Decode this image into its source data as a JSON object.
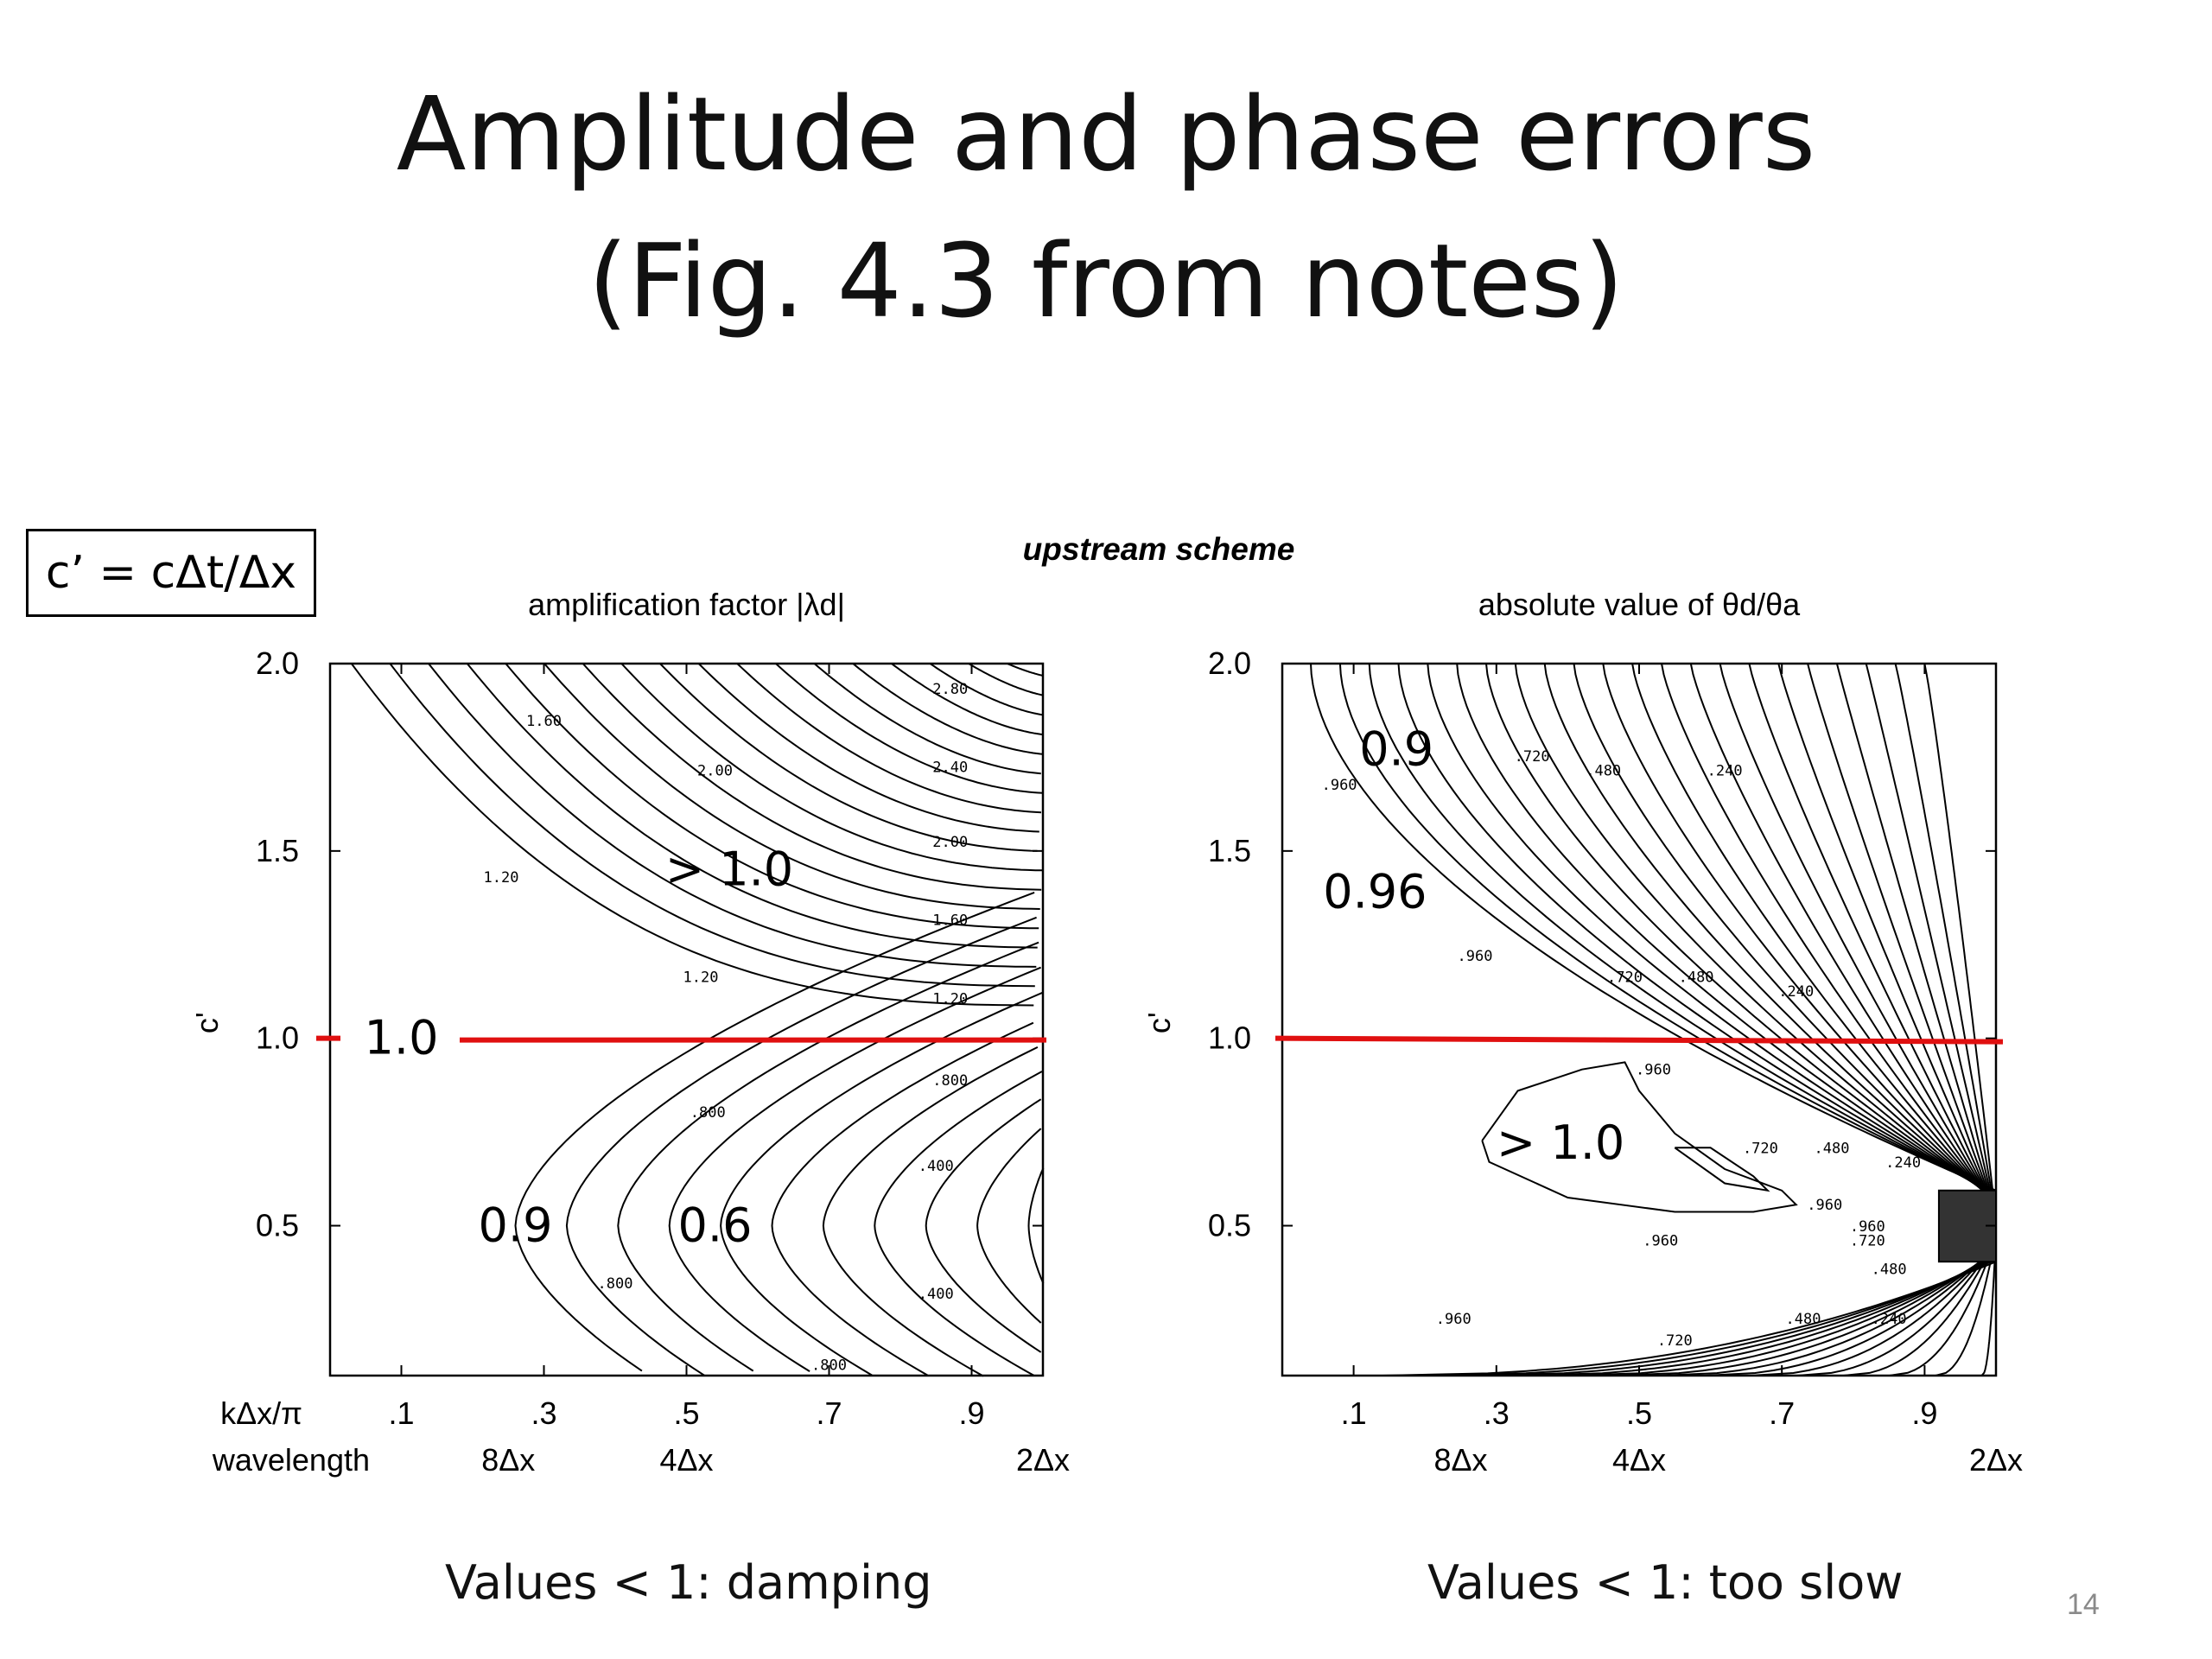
{
  "slide": {
    "title_line1": "Amplitude and phase errors",
    "title_line2": "(Fig. 4.3 from notes)",
    "definition": "c’ = cΔt/Δx",
    "caption_left": "Values < 1: damping",
    "caption_right": "Values < 1: too slow",
    "page_number": "14"
  },
  "chart_data": {
    "suptitle": "upstream scheme",
    "type": "contour",
    "highlight": {
      "y": 1.0,
      "color": "#e01010"
    },
    "panels": [
      {
        "title": "amplification factor |λd|",
        "ylabel": "c'",
        "xlabel": "kΔx/π",
        "secondary_xlabel": "wavelength",
        "xlim": [
          0.0,
          1.0
        ],
        "ylim": [
          0.1,
          2.0
        ],
        "x_ticks": [
          ".1",
          ".3",
          ".5",
          ".7",
          ".9"
        ],
        "y_ticks": [
          "0.5",
          "1.0",
          "1.5",
          "2.0"
        ],
        "wavelength_ticks": [
          {
            "x": 0.25,
            "label": "8Δx"
          },
          {
            "x": 0.5,
            "label": "4Δx"
          },
          {
            "x": 1.0,
            "label": "2Δx"
          }
        ],
        "contour_interval": 0.1,
        "contour_labels": [
          "2.80",
          "2.40",
          "2.00",
          "1.60",
          "1.20",
          ".800",
          ".400",
          "2.00",
          "1.60",
          "1.20",
          ".800",
          ".400",
          ".800",
          ".800"
        ],
        "annotations": [
          {
            "text": "> 1.0",
            "x": 0.56,
            "y": 1.45
          },
          {
            "text": "1.0",
            "x": 0.1,
            "y": 1.0
          },
          {
            "text": "0.9",
            "x": 0.26,
            "y": 0.5
          },
          {
            "text": "0.6",
            "x": 0.54,
            "y": 0.5
          }
        ]
      },
      {
        "title": "absolute value of θd/θa",
        "ylabel": "c'",
        "xlim": [
          0.0,
          1.0
        ],
        "ylim": [
          0.1,
          2.0
        ],
        "x_ticks": [
          ".1",
          ".3",
          ".5",
          ".7",
          ".9"
        ],
        "y_ticks": [
          "0.5",
          "1.0",
          "1.5",
          "2.0"
        ],
        "wavelength_ticks": [
          {
            "x": 0.25,
            "label": "8Δx"
          },
          {
            "x": 0.5,
            "label": "4Δx"
          },
          {
            "x": 1.0,
            "label": "2Δx"
          }
        ],
        "contour_interval": 0.04,
        "contour_labels": [
          ".960",
          ".720",
          ".480",
          ".240",
          ".960",
          ".720",
          ".480",
          ".240",
          ".960",
          ".720",
          ".480",
          ".240",
          ".960",
          ".960",
          ".720",
          ".480",
          ".960",
          ".720",
          ".480",
          ".240"
        ],
        "annotations": [
          {
            "text": "0.9",
            "x": 0.16,
            "y": 1.77
          },
          {
            "text": "0.96",
            "x": 0.13,
            "y": 1.39
          },
          {
            "text": "> 1.0",
            "x": 0.39,
            "y": 0.72
          }
        ]
      }
    ]
  }
}
